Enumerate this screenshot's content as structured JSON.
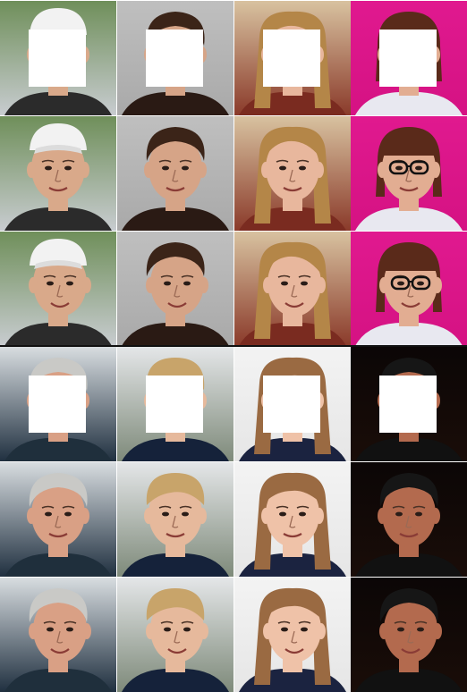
{
  "figure": {
    "columns": 4,
    "rows_per_panel": 3,
    "row_roles": [
      "masked-input",
      "result-a",
      "result-b"
    ],
    "panels": [
      {
        "subjects": [
          {
            "skin": "#d9a98a",
            "hair": "#f2f2f2",
            "bg_top": "#6f8f5a",
            "bg_bottom": "#c8ccd0",
            "hat": true,
            "glasses": false,
            "hair_style": "cap",
            "shirt": "#2b2b2b"
          },
          {
            "skin": "#d6a487",
            "hair": "#3b2418",
            "bg_top": "#bfbfbf",
            "bg_bottom": "#a9a9a9",
            "hat": false,
            "glasses": false,
            "hair_style": "short-dark",
            "shirt": "#2a1a14"
          },
          {
            "skin": "#e8b79d",
            "hair": "#b48648",
            "bg_top": "#d8c2a0",
            "bg_bottom": "#8a3a2a",
            "hat": false,
            "glasses": false,
            "hair_style": "long-blonde",
            "shirt": "#7a2b20"
          },
          {
            "skin": "#e2ad92",
            "hair": "#5a2a1a",
            "bg_top": "#e0198f",
            "bg_bottom": "#d51283",
            "hat": false,
            "glasses": true,
            "hair_style": "bangs",
            "shirt": "#e8e8f0"
          }
        ]
      },
      {
        "subjects": [
          {
            "skin": "#d9a085",
            "hair": "#c9c9c6",
            "bg_top": "#d8dde0",
            "bg_bottom": "#203040",
            "hat": false,
            "glasses": false,
            "hair_style": "grey",
            "shirt": "#1f2f3c"
          },
          {
            "skin": "#e6b99c",
            "hair": "#c8a46a",
            "bg_top": "#e4e6e8",
            "bg_bottom": "#7e8a7a",
            "hat": false,
            "glasses": false,
            "hair_style": "toddler-blonde",
            "shirt": "#15223a"
          },
          {
            "skin": "#efc2a8",
            "hair": "#9a6a42",
            "bg_top": "#f3f3f3",
            "bg_bottom": "#e6e6e6",
            "hat": false,
            "glasses": false,
            "hair_style": "pigtails",
            "shirt": "#1b2340"
          },
          {
            "skin": "#b36a4e",
            "hair": "#161616",
            "bg_top": "#0b0606",
            "bg_bottom": "#1a0d08",
            "hat": false,
            "glasses": false,
            "hair_style": "short-dark",
            "shirt": "#111111"
          }
        ]
      }
    ],
    "mask_color": "#ffffff",
    "divider_color": "#111111"
  }
}
